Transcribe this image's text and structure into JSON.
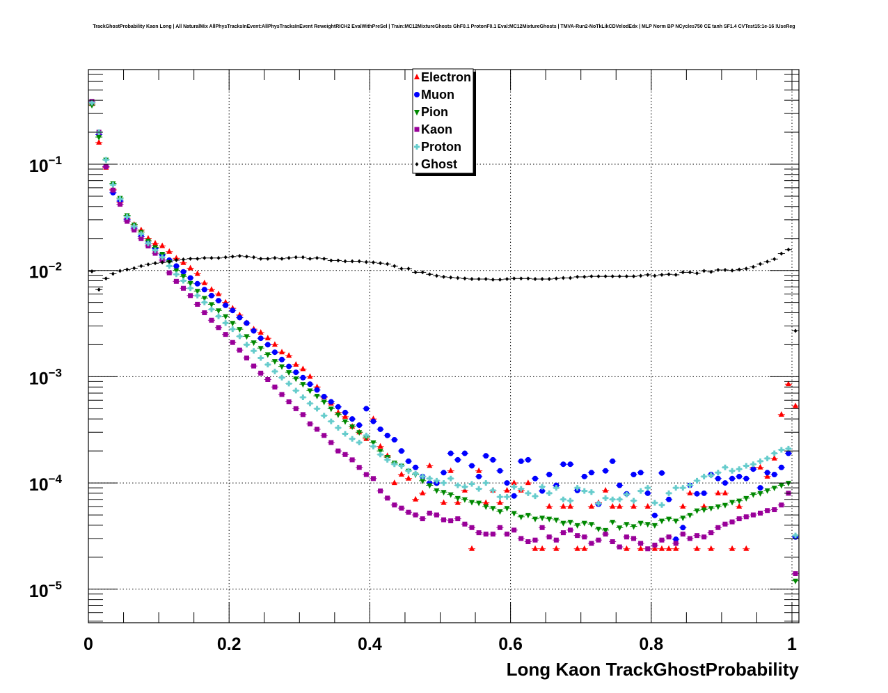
{
  "chart_data": {
    "type": "scatter",
    "title": "TrackGhostProbability Kaon Long | All NaturalMix AllPhysTracksInEvent:AllPhysTracksInEvent ReweightRICH2 EvalWithPreSel | Train:MC12MixtureGhosts GhF0.1 ProtonF0.1 Eval:MC12MixtureGhosts | TMVA-Run2-NoTkLikCDVelodEdx | MLP Norm BP NCycles750 CE tanh SF1.4 CVTest15:1e-16 !UseReg",
    "xlabel": "Long Kaon TrackGhostProbability",
    "ylabel": "",
    "xlim": [
      0,
      1.01
    ],
    "ylim": [
      4.9e-06,
      0.78
    ],
    "yscale": "log",
    "grid": true,
    "legend_position": "top-center",
    "x_ticks": [
      {
        "value": 0,
        "label": "0"
      },
      {
        "value": 0.2,
        "label": "0.2"
      },
      {
        "value": 0.4,
        "label": "0.4"
      },
      {
        "value": 0.6,
        "label": "0.6"
      },
      {
        "value": 0.8,
        "label": "0.8"
      },
      {
        "value": 1,
        "label": "1"
      }
    ],
    "y_ticks": [
      {
        "value": 0.1,
        "base": "10",
        "exp": "−1"
      },
      {
        "value": 0.01,
        "base": "10",
        "exp": "−2"
      },
      {
        "value": 0.001,
        "base": "10",
        "exp": "−3"
      },
      {
        "value": 0.0001,
        "base": "10",
        "exp": "−4"
      },
      {
        "value": 1e-05,
        "base": "10",
        "exp": "−5"
      }
    ],
    "bin_width": 0.01,
    "series": [
      {
        "name": "Electron",
        "color": "#ff0000",
        "marker": "triangle-up",
        "values": [
          0.37,
          0.16,
          0.093,
          0.058,
          0.044,
          0.031,
          0.027,
          0.024,
          0.02,
          0.018,
          0.017,
          0.015,
          0.013,
          0.0118,
          0.0105,
          0.0093,
          0.0076,
          0.0066,
          0.006,
          0.005,
          0.0044,
          0.0038,
          0.0032,
          0.0028,
          0.0026,
          0.0023,
          0.002,
          0.0017,
          0.00158,
          0.0013,
          0.00118,
          0.001,
          0.0008,
          0.00064,
          0.00056,
          0.00046,
          0.00042,
          0.00034,
          0.0003,
          0.00026,
          0.0004,
          0.00022,
          0.00018,
          0.0001,
          0.00012,
          0.00011,
          7e-05,
          8e-05,
          0.000145,
          0.0001,
          6.5e-05,
          0.00013,
          6.5e-05,
          8.5e-05,
          2.4e-05,
          0.00013,
          6.5e-05,
          8.5e-05,
          6.5e-05,
          8.5e-05,
          0.0001,
          8.5e-05,
          0.0001,
          2.4e-05,
          2.4e-05,
          6e-05,
          2.4e-05,
          6e-05,
          6e-05,
          2.4e-05,
          2.4e-05,
          6e-05,
          6.5e-05,
          8.5e-05,
          6e-05,
          6e-05,
          2.4e-05,
          6e-05,
          2.4e-05,
          6e-05,
          2.4e-05,
          2.4e-05,
          2.4e-05,
          2.4e-05,
          6e-05,
          8e-05,
          2.4e-05,
          6e-05,
          2.4e-05,
          8e-05,
          8e-05,
          2.4e-05,
          6e-05,
          2.4e-05,
          0.00014,
          0.00014,
          0.000115,
          0.00017,
          0.00044,
          0.00085,
          0.00053
        ]
      },
      {
        "name": "Muon",
        "color": "#0000ff",
        "marker": "circle",
        "values": [
          0.38,
          0.19,
          0.095,
          0.054,
          0.045,
          0.03,
          0.025,
          0.021,
          0.018,
          0.016,
          0.014,
          0.0125,
          0.011,
          0.0097,
          0.0085,
          0.0075,
          0.0066,
          0.0058,
          0.0052,
          0.0047,
          0.0042,
          0.0036,
          0.0032,
          0.0027,
          0.0023,
          0.002,
          0.0017,
          0.00145,
          0.00125,
          0.0011,
          0.00098,
          0.00085,
          0.00075,
          0.00065,
          0.00058,
          0.00052,
          0.00046,
          0.0004,
          0.00035,
          0.0005,
          0.00038,
          0.00032,
          0.00028,
          0.000255,
          0.0002,
          0.00016,
          0.00014,
          0.000115,
          0.0001,
          9.95e-05,
          0.000125,
          0.00019,
          0.000165,
          0.00019,
          0.000145,
          0.000115,
          0.00018,
          0.000165,
          0.00013,
          0.0001,
          7.55e-05,
          0.00016,
          0.000165,
          0.00011,
          8.4e-05,
          0.00012,
          9.5e-05,
          0.00015,
          0.00015,
          8.5e-05,
          0.000115,
          0.000125,
          6.3e-05,
          0.00013,
          0.00016,
          9.5e-05,
          7.9e-05,
          0.00012,
          0.000125,
          8e-05,
          4.95e-05,
          0.000124,
          7e-05,
          2.95e-05,
          3.8e-05,
          9.5e-05,
          7.9e-05,
          8e-05,
          0.00012,
          0.00011,
          0.0001,
          0.00011,
          0.000115,
          0.00011,
          0.000135,
          9e-05,
          0.000125,
          0.00012,
          0.00014,
          0.00019,
          3.1e-05
        ]
      },
      {
        "name": "Pion",
        "color": "#008800",
        "marker": "triangle-down",
        "values": [
          0.36,
          0.18,
          0.11,
          0.066,
          0.048,
          0.033,
          0.027,
          0.023,
          0.019,
          0.0165,
          0.0143,
          0.012,
          0.01,
          0.0088,
          0.0076,
          0.0064,
          0.0055,
          0.0048,
          0.0042,
          0.0037,
          0.0032,
          0.0028,
          0.0024,
          0.0021,
          0.00186,
          0.00162,
          0.0014,
          0.00125,
          0.0011,
          0.00096,
          0.00085,
          0.00074,
          0.00066,
          0.00058,
          0.0005,
          0.00044,
          0.00038,
          0.00034,
          0.0003,
          0.00027,
          0.00024,
          0.0002,
          0.000175,
          0.000155,
          0.000145,
          0.00013,
          0.00012,
          0.000105,
          9.5e-05,
          8.5e-05,
          8.2e-05,
          7.8e-05,
          7.2e-05,
          7e-05,
          6.6e-05,
          6.5e-05,
          6e-05,
          5.8e-05,
          5.4e-05,
          5.8e-05,
          5.2e-05,
          4.8e-05,
          5e-05,
          4.6e-05,
          4.7e-05,
          4.6e-05,
          4.5e-05,
          4.2e-05,
          4.3e-05,
          4e-05,
          4.2e-05,
          4.1e-05,
          3.7e-05,
          3.6e-05,
          4.3e-05,
          3.8e-05,
          4.1e-05,
          3.9e-05,
          4.2e-05,
          4.1e-05,
          4e-05,
          4.4e-05,
          4.6e-05,
          4.4e-05,
          4.7e-05,
          5e-05,
          5.5e-05,
          5.6e-05,
          5.8e-05,
          6e-05,
          6.2e-05,
          6.6e-05,
          6.8e-05,
          7.2e-05,
          7.8e-05,
          8e-05,
          8.5e-05,
          9e-05,
          9.5e-05,
          0.0001,
          1.2e-05
        ]
      },
      {
        "name": "Kaon",
        "color": "#990099",
        "marker": "square",
        "values": [
          0.39,
          0.2,
          0.095,
          0.057,
          0.042,
          0.029,
          0.024,
          0.02,
          0.017,
          0.0145,
          0.0125,
          0.0095,
          0.0079,
          0.0068,
          0.0058,
          0.0048,
          0.004,
          0.0034,
          0.0029,
          0.0025,
          0.0021,
          0.00178,
          0.0015,
          0.00126,
          0.00108,
          0.00094,
          0.0008,
          0.00068,
          0.00058,
          0.0005,
          0.00044,
          0.00036,
          0.00032,
          0.00028,
          0.00024,
          0.0002,
          0.000185,
          0.000165,
          0.00014,
          0.00012,
          0.00011,
          8.4e-05,
          7.2e-05,
          6.2e-05,
          5.8e-05,
          5.3e-05,
          5e-05,
          4.6e-05,
          5.2e-05,
          5e-05,
          4.5e-05,
          4.4e-05,
          4.6e-05,
          4.1e-05,
          3.8e-05,
          3.4e-05,
          3.3e-05,
          3.3e-05,
          3.8e-05,
          3.3e-05,
          3.6e-05,
          3e-05,
          2.8e-05,
          2.9e-05,
          3.8e-05,
          3.1e-05,
          2.9e-05,
          3.4e-05,
          3.6e-05,
          3.2e-05,
          3.1e-05,
          2.7e-05,
          2.9e-05,
          3.3e-05,
          2.8e-05,
          2.5e-05,
          3.1e-05,
          3e-05,
          2.7e-05,
          2.4e-05,
          2.6e-05,
          2.9e-05,
          3.1e-05,
          2.7e-05,
          3.3e-05,
          3e-05,
          3.2e-05,
          3.1e-05,
          3.4e-05,
          3.8e-05,
          4.1e-05,
          4.3e-05,
          4.6e-05,
          4.8e-05,
          5e-05,
          5.2e-05,
          5.5e-05,
          5.6e-05,
          6.2e-05,
          8e-05,
          1.4e-05
        ]
      },
      {
        "name": "Proton",
        "color": "#66cccc",
        "marker": "cross",
        "values": [
          0.38,
          0.2,
          0.11,
          0.064,
          0.047,
          0.032,
          0.026,
          0.022,
          0.018,
          0.0155,
          0.0133,
          0.011,
          0.0092,
          0.008,
          0.0068,
          0.0058,
          0.005,
          0.0043,
          0.0037,
          0.0032,
          0.0028,
          0.0024,
          0.002,
          0.00175,
          0.0015,
          0.0013,
          0.00112,
          0.00098,
          0.00086,
          0.00074,
          0.00064,
          0.00056,
          0.0005,
          0.00043,
          0.00038,
          0.00033,
          0.00029,
          0.00026,
          0.00024,
          0.00028,
          0.00022,
          0.000185,
          0.000165,
          0.00015,
          0.000145,
          0.00013,
          0.000122,
          0.000115,
          0.00011,
          0.000105,
          0.0001,
          0.00011,
          9.5e-05,
          9.2e-05,
          9.8e-05,
          8.8e-05,
          0.0001,
          8.5e-05,
          7.4e-05,
          7.4e-05,
          9.2e-05,
          8.8e-05,
          8e-05,
          7.5e-05,
          9.2e-05,
          8e-05,
          9e-05,
          7e-05,
          6.8e-05,
          9e-05,
          8.4e-05,
          8.2e-05,
          6.4e-05,
          7.2e-05,
          7e-05,
          7e-05,
          7.8e-05,
          6.8e-05,
          8.4e-05,
          9e-05,
          6.5e-05,
          6.2e-05,
          8e-05,
          9e-05,
          9e-05,
          9.5e-05,
          0.000105,
          0.000115,
          0.000118,
          0.000125,
          0.00014,
          0.00013,
          0.000135,
          0.000145,
          0.00015,
          0.00016,
          0.00017,
          0.00019,
          0.000205,
          0.00021,
          3.2e-05
        ]
      },
      {
        "name": "Ghost",
        "color": "#000000",
        "marker": "diamond",
        "values": [
          0.0098,
          0.0066,
          0.0084,
          0.0093,
          0.0099,
          0.0102,
          0.0105,
          0.011,
          0.0114,
          0.0117,
          0.0119,
          0.0121,
          0.0125,
          0.0127,
          0.0129,
          0.0129,
          0.0131,
          0.0131,
          0.0131,
          0.0133,
          0.0135,
          0.0137,
          0.0135,
          0.0133,
          0.0129,
          0.0129,
          0.0131,
          0.0129,
          0.0131,
          0.0133,
          0.0133,
          0.0129,
          0.0131,
          0.0129,
          0.0124,
          0.0124,
          0.0122,
          0.0122,
          0.0122,
          0.012,
          0.0119,
          0.0117,
          0.0115,
          0.011,
          0.0104,
          0.0104,
          0.0096,
          0.0096,
          0.0092,
          0.0089,
          0.0087,
          0.0086,
          0.0085,
          0.0084,
          0.0083,
          0.0083,
          0.0083,
          0.0082,
          0.0082,
          0.0083,
          0.0084,
          0.0084,
          0.0084,
          0.0083,
          0.0083,
          0.0083,
          0.0084,
          0.0085,
          0.0085,
          0.0087,
          0.0087,
          0.0088,
          0.0088,
          0.0088,
          0.0088,
          0.0088,
          0.0088,
          0.0088,
          0.0089,
          0.0091,
          0.0089,
          0.0091,
          0.0092,
          0.0091,
          0.0096,
          0.0096,
          0.0094,
          0.0099,
          0.0097,
          0.0101,
          0.0101,
          0.01,
          0.0102,
          0.0104,
          0.0108,
          0.0115,
          0.0121,
          0.0128,
          0.0144,
          0.0157,
          0.0027
        ]
      }
    ]
  }
}
